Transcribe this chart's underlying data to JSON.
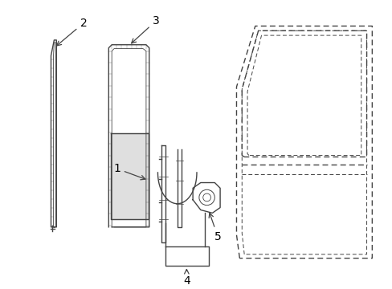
{
  "bg_color": "#ffffff",
  "line_color": "#444444",
  "lw": 1.0,
  "figsize": [
    4.89,
    3.6
  ],
  "dpi": 100,
  "label_fs": 10
}
